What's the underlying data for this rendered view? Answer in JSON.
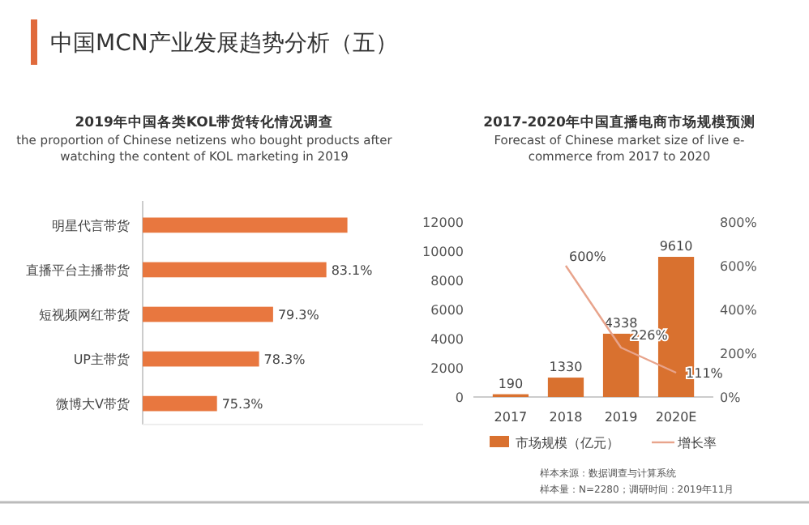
{
  "chart_data": [
    {
      "type": "other",
      "title": "中国MCN产业发展趋势分析（五）"
    },
    {
      "type": "bar",
      "orientation": "horizontal",
      "title": "2019年中国各类KOL带货转化情况调查",
      "subtitle": "the proportion of Chinese netizens who bought products after watching the content of KOL marketing in 2019",
      "categories": [
        "明星代言带货",
        "直播平台主播带货",
        "短视频网红带货",
        "UP主带货",
        "微博大V带货"
      ],
      "values": [
        84.6,
        83.1,
        79.3,
        78.3,
        75.3
      ],
      "value_labels": [
        null,
        "83.1%",
        "79.3%",
        "78.3%",
        "75.3%"
      ],
      "color": "#e8773f",
      "xlim": [
        70,
        90
      ],
      "tick_labels": "y",
      "grid": false,
      "legend": false
    },
    {
      "type": "bar",
      "title": "2017-2020年中国直播电商市场规模预测",
      "subtitle": "Forecast of Chinese market size of live e-commerce from 2017 to 2020",
      "categories": [
        "2017",
        "2018",
        "2019",
        "2020E"
      ],
      "series": [
        {
          "name": "市场规模（亿元）",
          "type": "bar",
          "color": "#d9712f",
          "values": [
            190,
            1330,
            4338,
            9610
          ]
        },
        {
          "name": "增长率",
          "type": "line",
          "axis": "y2",
          "color": "#e8a48c",
          "values": [
            null,
            600,
            226,
            111
          ],
          "value_labels": [
            null,
            "600%",
            "226%",
            "111%"
          ]
        }
      ],
      "data_labels": true,
      "ylim": [
        0,
        12000
      ],
      "yticks": [
        0,
        2000,
        4000,
        6000,
        8000,
        10000,
        12000
      ],
      "y2lim": [
        0,
        800
      ],
      "y2ticks": [
        {
          "value": 0,
          "label": "0%"
        },
        {
          "value": 200,
          "label": "200%"
        },
        {
          "value": 400,
          "label": "400%"
        },
        {
          "value": 600,
          "label": "600%"
        },
        {
          "value": 800,
          "label": "800%"
        }
      ],
      "grid": false,
      "legend": "bottom",
      "marker": "none",
      "line_style": "solid",
      "annotations": [
        "样本来源：数据调查与计算系统",
        "样本量：N=2280；调研时间：2019年11月"
      ]
    }
  ]
}
